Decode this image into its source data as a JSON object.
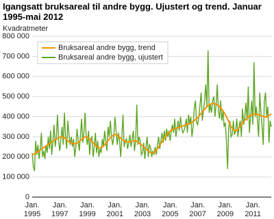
{
  "chart_data": {
    "type": "line",
    "title": "Igangsatt bruksareal til andre bygg. Ujustert og trend. Januar 1995-mai 2012",
    "y_label": "Kvadratmeter",
    "categories": [
      "Jan.\n1995",
      null,
      null,
      null,
      null,
      null,
      null,
      null,
      null,
      null,
      null,
      null,
      null,
      null,
      null,
      null,
      null,
      null,
      null,
      null,
      null,
      null,
      null,
      null,
      "Jan.\n1997",
      null,
      null,
      null,
      null,
      null,
      null,
      null,
      null,
      null,
      null,
      null,
      null,
      null,
      null,
      null,
      null,
      null,
      null,
      null,
      null,
      null,
      null,
      null,
      "Jan.\n1999",
      null,
      null,
      null,
      null,
      null,
      null,
      null,
      null,
      null,
      null,
      null,
      null,
      null,
      null,
      null,
      null,
      null,
      null,
      null,
      null,
      null,
      null,
      null,
      "Jan.\n2001",
      null,
      null,
      null,
      null,
      null,
      null,
      null,
      null,
      null,
      null,
      null,
      null,
      null,
      null,
      null,
      null,
      null,
      null,
      null,
      null,
      null,
      null,
      null,
      "Jan.\n2003",
      null,
      null,
      null,
      null,
      null,
      null,
      null,
      null,
      null,
      null,
      null,
      null,
      null,
      null,
      null,
      null,
      null,
      null,
      null,
      null,
      null,
      null,
      null,
      "Jan.\n2005",
      null,
      null,
      null,
      null,
      null,
      null,
      null,
      null,
      null,
      null,
      null,
      null,
      null,
      null,
      null,
      null,
      null,
      null,
      null,
      null,
      null,
      null,
      null,
      "Jan.\n2007",
      null,
      null,
      null,
      null,
      null,
      null,
      null,
      null,
      null,
      null,
      null,
      null,
      null,
      null,
      null,
      null,
      null,
      null,
      null,
      null,
      null,
      null,
      null,
      "Jan.\n2009",
      null,
      null,
      null,
      null,
      null,
      null,
      null,
      null,
      null,
      null,
      null,
      null,
      null,
      null,
      null,
      null,
      null,
      null,
      null,
      null,
      null,
      null,
      null,
      "Jan.\n2011",
      null,
      null,
      null,
      null,
      null,
      null,
      null,
      null,
      null,
      null,
      null,
      null,
      null,
      null,
      null,
      null
    ],
    "series": [
      {
        "name": "Bruksareal andre bygg, trend",
        "color": "#f39200",
        "values": [
          210000,
          212000,
          215000,
          218000,
          222000,
          226000,
          230000,
          234000,
          238000,
          242000,
          246000,
          250000,
          254000,
          258000,
          262000,
          266000,
          270000,
          274000,
          278000,
          282000,
          286000,
          289000,
          292000,
          295000,
          298000,
          300000,
          300000,
          298000,
          295000,
          290000,
          285000,
          280000,
          275000,
          272000,
          270000,
          268000,
          266000,
          265000,
          266000,
          268000,
          272000,
          277000,
          282000,
          287000,
          292000,
          296000,
          299000,
          300000,
          298000,
          294000,
          288000,
          282000,
          276000,
          270000,
          264000,
          258000,
          253000,
          249000,
          246000,
          245000,
          246000,
          249000,
          254000,
          260000,
          267000,
          274000,
          281000,
          288000,
          295000,
          301000,
          306000,
          310000,
          311000,
          310000,
          307000,
          303000,
          298000,
          293000,
          288000,
          284000,
          280000,
          277000,
          275000,
          274000,
          274000,
          275000,
          277000,
          279000,
          280000,
          280000,
          279000,
          277000,
          274000,
          270000,
          265000,
          260000,
          255000,
          250000,
          245000,
          240000,
          235000,
          230000,
          226000,
          222000,
          220000,
          220000,
          222000,
          226000,
          232000,
          240000,
          249000,
          258000,
          267000,
          276000,
          285000,
          294000,
          302000,
          310000,
          317000,
          323000,
          328000,
          332000,
          335000,
          338000,
          340000,
          342000,
          344000,
          346000,
          348000,
          350000,
          352000,
          354000,
          356000,
          358000,
          360000,
          362000,
          364000,
          366000,
          369000,
          372000,
          376000,
          380000,
          385000,
          390000,
          396000,
          402000,
          409000,
          416000,
          423000,
          430000,
          437000,
          444000,
          450000,
          455000,
          459000,
          462000,
          464000,
          465000,
          465000,
          464000,
          462000,
          459000,
          455000,
          450000,
          444000,
          437000,
          429000,
          420000,
          410000,
          399000,
          387000,
          375000,
          363000,
          352000,
          343000,
          336000,
          331000,
          330000,
          332000,
          337000,
          344000,
          352000,
          360000,
          368000,
          375000,
          382000,
          388000,
          394000,
          399000,
          403000,
          407000,
          410000,
          412000,
          413000,
          413000,
          412000,
          411000,
          409000,
          407000,
          405000,
          403000,
          401000,
          399000,
          398000,
          398000,
          401000,
          405000,
          410000,
          415000
        ]
      },
      {
        "name": "Bruksareal andre bygg, ujustert",
        "color": "#5ca423",
        "values": [
          220000,
          150000,
          130000,
          280000,
          210000,
          260000,
          190000,
          240000,
          320000,
          200000,
          230000,
          190000,
          260000,
          220000,
          300000,
          240000,
          330000,
          210000,
          280000,
          360000,
          250000,
          300000,
          410000,
          280000,
          230000,
          290000,
          350000,
          260000,
          420000,
          300000,
          240000,
          380000,
          310000,
          260000,
          300000,
          250000,
          290000,
          200000,
          250000,
          340000,
          280000,
          230000,
          310000,
          390000,
          270000,
          320000,
          420000,
          300000,
          260000,
          330000,
          210000,
          290000,
          300000,
          200000,
          250000,
          320000,
          220000,
          280000,
          200000,
          240000,
          220000,
          290000,
          250000,
          330000,
          280000,
          230000,
          350000,
          300000,
          380000,
          300000,
          260000,
          300000,
          400000,
          330000,
          260000,
          320000,
          280000,
          200000,
          300000,
          410000,
          250000,
          280000,
          290000,
          240000,
          270000,
          310000,
          250000,
          290000,
          330000,
          230000,
          280000,
          460000,
          260000,
          300000,
          280000,
          210000,
          220000,
          270000,
          190000,
          250000,
          300000,
          200000,
          260000,
          250000,
          200000,
          230000,
          210000,
          250000,
          210000,
          260000,
          300000,
          240000,
          280000,
          320000,
          270000,
          330000,
          280000,
          340000,
          300000,
          330000,
          280000,
          330000,
          360000,
          320000,
          390000,
          300000,
          340000,
          380000,
          330000,
          400000,
          350000,
          320000,
          330000,
          350000,
          390000,
          320000,
          410000,
          360000,
          400000,
          300000,
          350000,
          440000,
          480000,
          370000,
          360000,
          400000,
          460000,
          520000,
          380000,
          430000,
          480000,
          560000,
          450000,
          730000,
          420000,
          460000,
          420000,
          480000,
          500000,
          400000,
          460000,
          560000,
          430000,
          390000,
          480000,
          380000,
          430000,
          350000,
          370000,
          280000,
          140000,
          350000,
          380000,
          300000,
          310000,
          380000,
          310000,
          330000,
          390000,
          300000,
          350000,
          380000,
          300000,
          440000,
          360000,
          400000,
          470000,
          380000,
          550000,
          320000,
          400000,
          480000,
          360000,
          670000,
          400000,
          450000,
          380000,
          300000,
          520000,
          420000,
          350000,
          260000,
          480000,
          520000,
          400000,
          450000,
          270000,
          380000,
          350000
        ]
      }
    ],
    "ylim": [
      0,
      800000
    ],
    "yticks": [
      {
        "value": 0,
        "label": "0"
      },
      {
        "value": 100000,
        "label": "100 000"
      },
      {
        "value": 200000,
        "label": "200 000"
      },
      {
        "value": 300000,
        "label": "300 000"
      },
      {
        "value": 400000,
        "label": "400 000"
      },
      {
        "value": 500000,
        "label": "500 000"
      },
      {
        "value": 600000,
        "label": "600 000"
      },
      {
        "value": 700000,
        "label": "700 000"
      },
      {
        "value": 800000,
        "label": "800 000"
      }
    ],
    "grid": true,
    "legend": "top-left"
  }
}
